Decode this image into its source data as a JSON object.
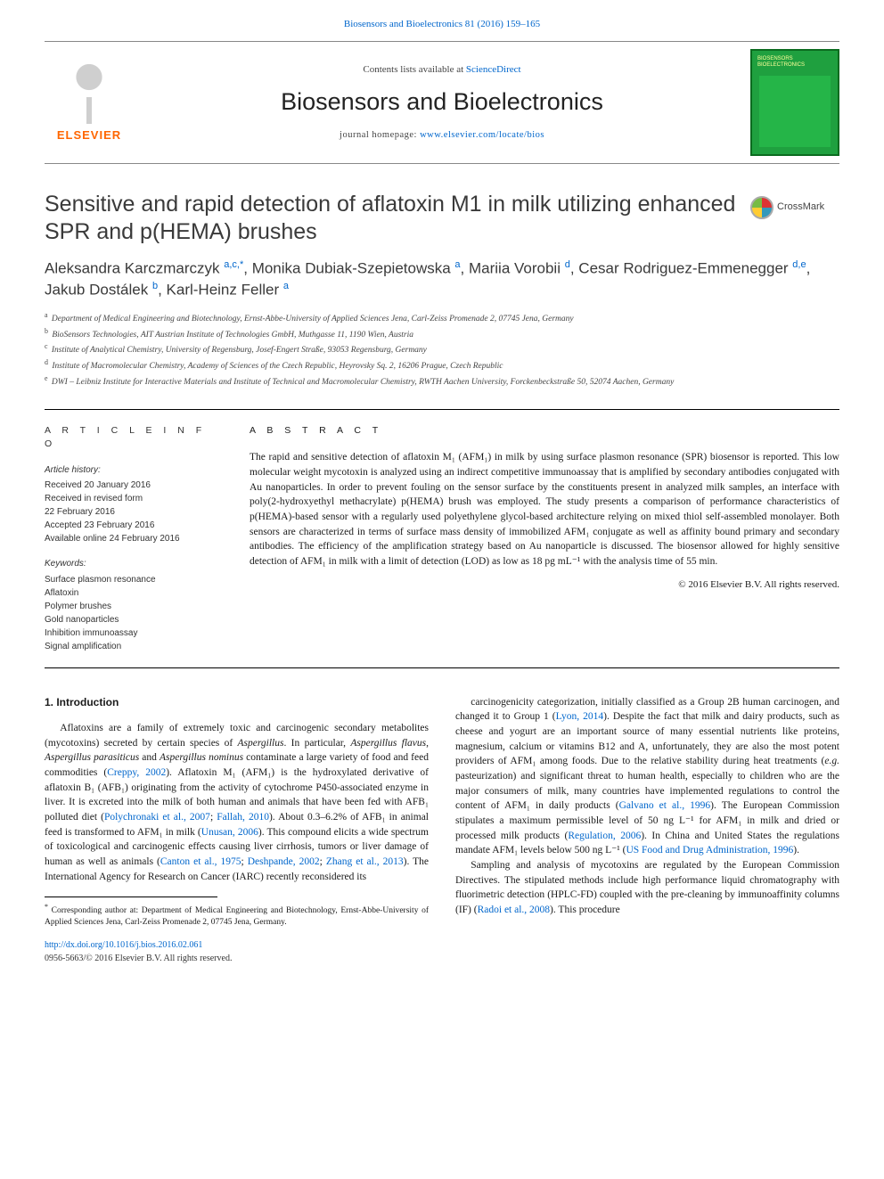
{
  "top_link": {
    "prefix": "Biosensors and Bioelectronics 81 (2016) 159–165",
    "href_label": "Biosensors and Bioelectronics 81 (2016) 159–165"
  },
  "masthead": {
    "contents_prefix": "Contents lists available at ",
    "contents_link": "ScienceDirect",
    "journal_name": "Biosensors and Bioelectronics",
    "homepage_prefix": "journal homepage: ",
    "homepage_url": "www.elsevier.com/locate/bios",
    "publisher": "ELSEVIER",
    "cover_text": "BIOSENSORS BIOELECTRONICS"
  },
  "article": {
    "title": "Sensitive and rapid detection of aflatoxin M1 in milk utilizing enhanced SPR and p(HEMA) brushes",
    "crossmark_label": "CrossMark",
    "authors_html": "Aleksandra Karczmarczyk <sup>a,c,*</sup>, Monika Dubiak-Szepietowska <sup>a</sup>, Mariia Vorobii <sup>d</sup>, Cesar Rodriguez-Emmenegger <sup>d,e</sup>, Jakub Dostálek <sup>b</sup>, Karl-Heinz Feller <sup>a</sup>",
    "affiliations": [
      {
        "sup": "a",
        "text": "Department of Medical Engineering and Biotechnology, Ernst-Abbe-University of Applied Sciences Jena, Carl-Zeiss Promenade 2, 07745 Jena, Germany"
      },
      {
        "sup": "b",
        "text": "BioSensors Technologies, AIT Austrian Institute of Technologies GmbH, Muthgasse 11, 1190 Wien, Austria"
      },
      {
        "sup": "c",
        "text": "Institute of Analytical Chemistry, University of Regensburg, Josef-Engert Straße, 93053 Regensburg, Germany"
      },
      {
        "sup": "d",
        "text": "Institute of Macromolecular Chemistry, Academy of Sciences of the Czech Republic, Heyrovsky Sq. 2, 16206 Prague, Czech Republic"
      },
      {
        "sup": "e",
        "text": "DWI – Leibniz Institute for Interactive Materials and Institute of Technical and Macromolecular Chemistry, RWTH Aachen University, Forckenbeckstraße 50, 52074 Aachen, Germany"
      }
    ]
  },
  "meta": {
    "info_heading": "A R T I C L E  I N F O",
    "history_label": "Article history:",
    "history_lines": [
      "Received 20 January 2016",
      "Received in revised form",
      "22 February 2016",
      "Accepted 23 February 2016",
      "Available online 24 February 2016"
    ],
    "keywords_label": "Keywords:",
    "keywords": [
      "Surface plasmon resonance",
      "Aflatoxin",
      "Polymer brushes",
      "Gold nanoparticles",
      "Inhibition immunoassay",
      "Signal amplification"
    ],
    "abstract_heading": "A B S T R A C T",
    "abstract": "The rapid and sensitive detection of aflatoxin M₁ (AFM₁) in milk by using surface plasmon resonance (SPR) biosensor is reported. This low molecular weight mycotoxin is analyzed using an indirect competitive immunoassay that is amplified by secondary antibodies conjugated with Au nanoparticles. In order to prevent fouling on the sensor surface by the constituents present in analyzed milk samples, an interface with poly(2-hydroxyethyl methacrylate) p(HEMA) brush was employed. The study presents a comparison of performance characteristics of p(HEMA)-based sensor with a regularly used polyethylene glycol-based architecture relying on mixed thiol self-assembled monolayer. Both sensors are characterized in terms of surface mass density of immobilized AFM₁ conjugate as well as affinity bound primary and secondary antibodies. The efficiency of the amplification strategy based on Au nanoparticle is discussed. The biosensor allowed for highly sensitive detection of AFM₁ in milk with a limit of detection (LOD) as low as 18 pg mL⁻¹ with the analysis time of 55 min.",
    "copyright": "© 2016 Elsevier B.V. All rights reserved."
  },
  "body": {
    "section_heading": "1.  Introduction",
    "col1_p1": "Aflatoxins are a family of extremely toxic and carcinogenic secondary metabolites (mycotoxins) secreted by certain species of <em>Aspergillus</em>. In particular, <em>Aspergillus flavus</em>, <em>Aspergillus parasiticus</em> and <em>Aspergillus nominus</em> contaminate a large variety of food and feed commodities (<a class='cite'>Creppy, 2002</a>). Aflatoxin M₁ (AFM₁) is the hydroxylated derivative of aflatoxin B₁ (AFB₁) originating from the activity of cytochrome P450-associated enzyme in liver. It is excreted into the milk of both human and animals that have been fed with AFB₁ polluted diet (<a class='cite'>Polychronaki et al., 2007</a>; <a class='cite'>Fallah, 2010</a>). About 0.3–6.2% of AFB₁ in animal feed is transformed to AFM₁ in milk (<a class='cite'>Unusan, 2006</a>). This compound elicits a wide spectrum of toxicological and carcinogenic effects causing liver cirrhosis, tumors or liver damage of human as well as animals (<a class='cite'>Canton et al., 1975</a>; <a class='cite'>Deshpande, 2002</a>; <a class='cite'>Zhang et al., 2013</a>). The International Agency for Research on Cancer (IARC) recently reconsidered its",
    "col2_p1": "carcinogenicity categorization, initially classified as a Group 2B human carcinogen, and changed it to Group 1 (<a class='cite'>Lyon, 2014</a>). Despite the fact that milk and dairy products, such as cheese and yogurt are an important source of many essential nutrients like proteins, magnesium, calcium or vitamins B12 and A, unfortunately, they are also the most potent providers of AFM₁ among foods. Due to the relative stability during heat treatments (<em>e.g.</em> pasteurization) and significant threat to human health, especially to children who are the major consumers of milk, many countries have implemented regulations to control the content of AFM₁ in daily products (<a class='cite'>Galvano et al., 1996</a>). The European Commission stipulates a maximum permissible level of 50 ng L⁻¹ for AFM₁ in milk and dried or processed milk products (<a class='cite'>Regulation, 2006</a>). In China and United States the regulations mandate AFM₁ levels below 500 ng L⁻¹ (<a class='cite'>US Food and Drug Administration, 1996</a>).",
    "col2_p2": "Sampling and analysis of mycotoxins are regulated by the European Commission Directives. The stipulated methods include high performance liquid chromatography with fluorimetric detection (HPLC-FD) coupled with the pre-cleaning by immunoaffinity columns (IF) (<a class='cite'>Radoi et al., 2008</a>). This procedure"
  },
  "footer": {
    "footnote_marker": "*",
    "footnote_text": "Corresponding author at: Department of Medical Engineering and Biotechnology, Ernst-Abbe-University of Applied Sciences Jena, Carl-Zeiss Promenade 2, 07745 Jena, Germany.",
    "doi_url": "http://dx.doi.org/10.1016/j.bios.2016.02.061",
    "issn_line": "0956-5663/© 2016 Elsevier B.V. All rights reserved."
  },
  "colors": {
    "link": "#0066cc",
    "elsevier_orange": "#ff6600",
    "cover_green": "#1fa03f"
  }
}
